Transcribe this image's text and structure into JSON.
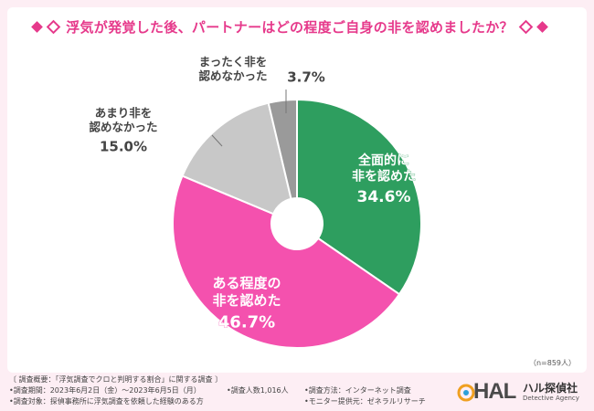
{
  "header": {
    "title": "浮気が発覚した後、パートナーはどの程度ご自身の非を認めましたか？"
  },
  "chart_data": {
    "type": "pie",
    "style": "donut",
    "slices": [
      {
        "label_lines": [
          "全面的に",
          "非を認めた"
        ],
        "value": 34.6,
        "value_label": "34.6%",
        "color": "#2e9e5f",
        "label_color": "#ffffff",
        "label_outline": "#2e9e5f"
      },
      {
        "label_lines": [
          "ある程度の",
          "非を認めた"
        ],
        "value": 46.7,
        "value_label": "46.7%",
        "color": "#f451ae",
        "label_color": "#ffffff",
        "label_outline": "#f451ae"
      },
      {
        "label_lines": [
          "あまり非を",
          "認めなかった"
        ],
        "value": 15.0,
        "value_label": "15.0%",
        "color": "#c8c8c8",
        "label_color": "#444444",
        "label_outline": ""
      },
      {
        "label_lines": [
          "まったく非を",
          "認めなかった"
        ],
        "value": 3.7,
        "value_label": "3.7%",
        "color": "#9a9a9a",
        "label_color": "#444444",
        "label_outline": ""
      }
    ],
    "sample_note": "（n=859人）"
  },
  "footer": {
    "overview": "〔 調査概要：「浮気調査でクロと判明する割合」に関する調査 〕",
    "period": "•調査期間：2023年6月2日（金）〜2023年6月5日（月）",
    "respondents": "•調査人数1,016人",
    "method": "•調査方法：インターネット調査",
    "target": "•調査対象：探偵事務所に浮気調査を依頼した経験のある方",
    "provider": "•モニター提供元：ゼネラルリサーチ"
  },
  "logo": {
    "mark": "HAL",
    "name_jp": "ハル探偵社",
    "name_en": "Detective Agency"
  },
  "colors": {
    "accent": "#e6398b",
    "background": "#fdeef4"
  }
}
